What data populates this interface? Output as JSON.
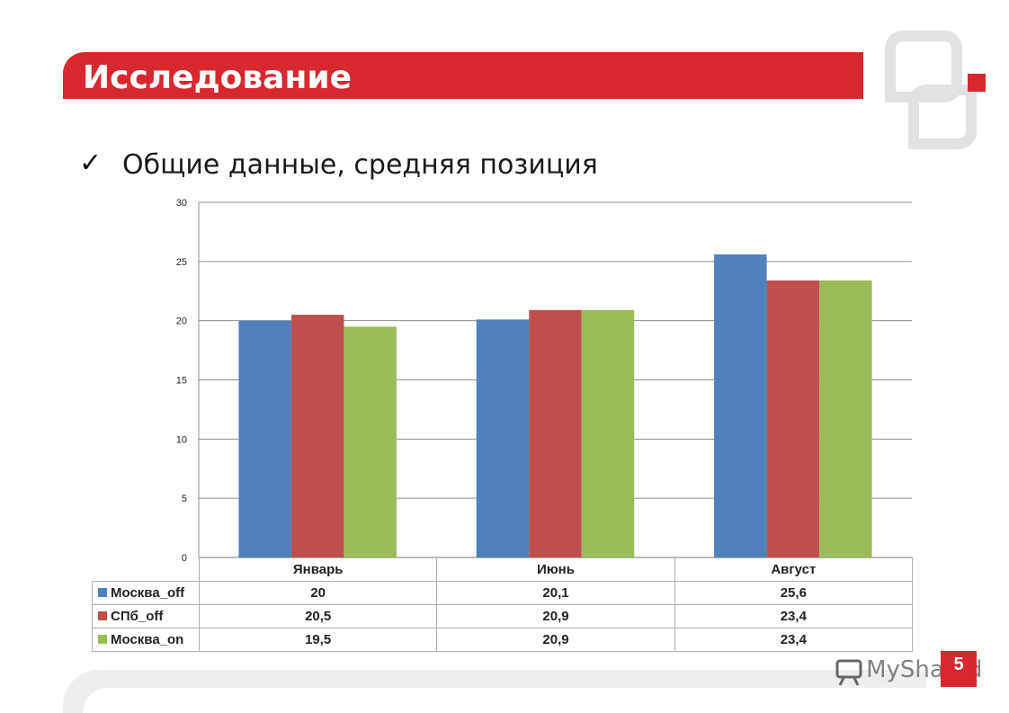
{
  "header": {
    "title": "Исследование"
  },
  "subtitle": {
    "check": "✓",
    "text": "Общие данные, средняя позиция"
  },
  "colors": {
    "accent": "#d7282f",
    "moscow_off": "#4f81bd",
    "spb_off": "#c0504d",
    "moscow_on": "#9bbb59"
  },
  "chart_data": {
    "type": "bar",
    "categories": [
      "Январь",
      "Июнь",
      "Август"
    ],
    "series": [
      {
        "name": "Москва_off",
        "color": "#4f81bd",
        "values": [
          20,
          20.1,
          25.6
        ],
        "labels": [
          "20",
          "20,1",
          "25,6"
        ]
      },
      {
        "name": "СПб_off",
        "color": "#c0504d",
        "values": [
          20.5,
          20.9,
          23.4
        ],
        "labels": [
          "20,5",
          "20,9",
          "23,4"
        ]
      },
      {
        "name": "Москва_on",
        "color": "#9bbb59",
        "values": [
          19.5,
          20.9,
          23.4
        ],
        "labels": [
          "19,5",
          "20,9",
          "23,4"
        ]
      }
    ],
    "ylim": [
      0,
      30
    ],
    "yticks": [
      0,
      5,
      10,
      15,
      20,
      25,
      30
    ],
    "grid": true,
    "legend": "data-table-below"
  },
  "footer": {
    "page_number": "5",
    "watermark": "MyShared"
  }
}
